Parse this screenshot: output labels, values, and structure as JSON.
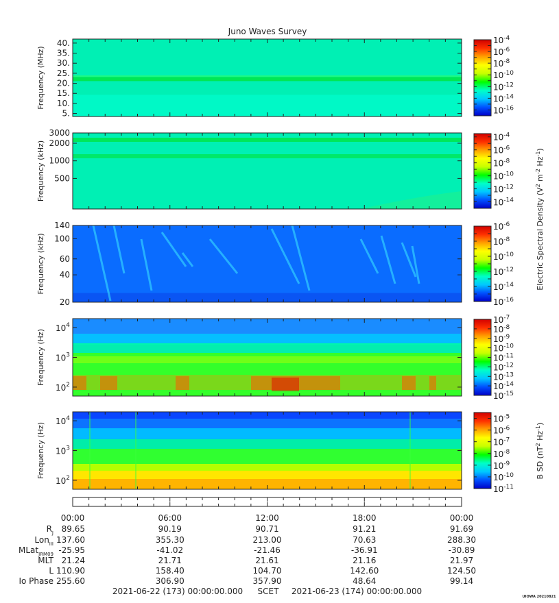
{
  "chart_data": {
    "type": "heatmap",
    "title": "Juno Waves Survey",
    "panels": [
      {
        "name": "hfr-high",
        "ylabel": "Frequency (MHz)",
        "scale": "linear",
        "ylim": [
          3.5,
          42
        ],
        "yticks": [
          {
            "v": 5,
            "label": "5."
          },
          {
            "v": 10,
            "label": "10."
          },
          {
            "v": 15,
            "label": "15."
          },
          {
            "v": 20,
            "label": "20."
          },
          {
            "v": 25,
            "label": "25."
          },
          {
            "v": 30,
            "label": "30."
          },
          {
            "v": 35,
            "label": "35."
          },
          {
            "v": 40,
            "label": "40."
          }
        ],
        "colorbar": {
          "min_exp": -17,
          "max_exp": -4,
          "tick_exps": [
            -16,
            -14,
            -12,
            -10,
            -8,
            -6,
            -4
          ]
        }
      },
      {
        "name": "hfr-low",
        "ylabel": "Frequency (kHz)",
        "scale": "log",
        "ylim": [
          150,
          3000
        ],
        "yticks": [
          {
            "v": 500,
            "label": "500"
          },
          {
            "v": 1000,
            "label": "1000"
          },
          {
            "v": 2000,
            "label": "2000"
          },
          {
            "v": 3000,
            "label": "3000"
          }
        ],
        "colorbar": {
          "min_exp": -15,
          "max_exp": -3.5,
          "tick_exps": [
            -14,
            -12,
            -10,
            -8,
            -6,
            -4
          ]
        }
      },
      {
        "name": "lfr-high",
        "ylabel": "Frequency (kHz)",
        "scale": "log",
        "ylim": [
          20,
          140
        ],
        "yticks": [
          {
            "v": 20,
            "label": "20"
          },
          {
            "v": 40,
            "label": "40"
          },
          {
            "v": 60,
            "label": "60"
          },
          {
            "v": 100,
            "label": "100"
          },
          {
            "v": 140,
            "label": "140"
          }
        ],
        "colorbar": {
          "min_exp": -16,
          "max_exp": -6,
          "tick_exps": [
            -16,
            -14,
            -12,
            -10,
            -8,
            -6
          ]
        }
      },
      {
        "name": "lfr-low-e",
        "ylabel": "Frequency (Hz)",
        "scale": "log",
        "ylim": [
          50,
          20000
        ],
        "yticks": [
          {
            "v": 100,
            "base": "10",
            "exp": "2"
          },
          {
            "v": 1000,
            "base": "10",
            "exp": "3"
          },
          {
            "v": 10000,
            "base": "10",
            "exp": "4"
          }
        ],
        "colorbar": {
          "min_exp": -15,
          "max_exp": -7,
          "tick_exps": [
            -15,
            -14,
            -13,
            -12,
            -11,
            -10,
            -9,
            -8,
            -7
          ]
        }
      },
      {
        "name": "lfr-low-b",
        "ylabel": "Frequency (Hz)",
        "scale": "log",
        "ylim": [
          50,
          20000
        ],
        "yticks": [
          {
            "v": 100,
            "base": "10",
            "exp": "2"
          },
          {
            "v": 1000,
            "base": "10",
            "exp": "3"
          },
          {
            "v": 10000,
            "base": "10",
            "exp": "4"
          }
        ],
        "colorbar": {
          "min_exp": -11,
          "max_exp": -4.5,
          "tick_exps": [
            -11,
            -10,
            -9,
            -8,
            -7,
            -6,
            -5
          ]
        }
      }
    ],
    "colorbar_labels": {
      "electric": {
        "pre": "Electric Spectral Density (V",
        "sup1": "2",
        "mid": " m",
        "sup2": "-2",
        "mid2": " Hz",
        "sup3": "-1",
        "post": ")"
      },
      "magnetic": {
        "pre": "B SD (nT",
        "sup1": "2",
        "mid": " Hz",
        "sup2": "-1",
        "post": ")"
      }
    },
    "x": {
      "range_hours": [
        0,
        24
      ],
      "tick_hours": [
        0,
        6,
        12,
        18,
        24
      ],
      "tick_labels": [
        "00:00",
        "06:00",
        "12:00",
        "18:00",
        "00:00"
      ]
    },
    "ephemeris": {
      "rows": [
        {
          "label": "R",
          "sub": "J",
          "values": [
            "89.65",
            "90.19",
            "90.71",
            "91.21",
            "91.69"
          ]
        },
        {
          "label": "Lon",
          "sub": "III",
          "values": [
            "137.60",
            "355.30",
            "213.00",
            "70.63",
            "288.30"
          ]
        },
        {
          "label": "MLat",
          "sub": "JRM09",
          "values": [
            "-25.95",
            "-41.02",
            "-21.46",
            "-36.91",
            "-30.89"
          ]
        },
        {
          "label": "MLT",
          "sub": "",
          "values": [
            "21.24",
            "21.71",
            "21.61",
            "21.16",
            "21.97"
          ]
        },
        {
          "label": "L",
          "sub": "",
          "values": [
            "110.90",
            "158.40",
            "104.70",
            "142.60",
            "124.50"
          ]
        },
        {
          "label": "Io Phase",
          "sub": "",
          "values": [
            "255.60",
            "306.90",
            "357.90",
            "48.64",
            "99.14"
          ]
        }
      ]
    },
    "footer": {
      "start": "2021-06-22 (173) 00:00:00.000",
      "mid": "SCET",
      "end": "2021-06-23 (174) 00:00:00.000"
    },
    "credit": "UIOWA 20210821",
    "colormap": [
      "#0000c8",
      "#0050ff",
      "#00c8ff",
      "#00ffc8",
      "#00ff00",
      "#c8ff00",
      "#ffff00",
      "#ffa000",
      "#ff3000",
      "#d00000"
    ]
  }
}
